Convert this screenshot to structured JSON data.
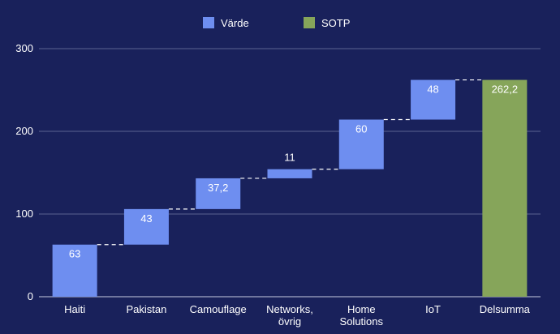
{
  "chart_data": {
    "type": "waterfall",
    "categories": [
      "Haiti",
      "Pakistan",
      "Camouflage",
      "Networks,\növrig",
      "Home\nSolutions",
      "IoT",
      "Delsumma"
    ],
    "values": [
      63,
      43,
      37.2,
      11,
      60,
      48,
      262.2
    ],
    "value_labels": [
      "63",
      "43",
      "37,2",
      "11",
      "60",
      "48",
      "262,2"
    ],
    "is_total": [
      false,
      false,
      false,
      false,
      false,
      false,
      true
    ],
    "legend": [
      {
        "name": "Värde",
        "color": "#6e8ef0"
      },
      {
        "name": "SOTP",
        "color": "#86a55a"
      }
    ],
    "title": "",
    "xlabel": "",
    "ylabel": "",
    "ylim": [
      0,
      300
    ],
    "yticks": [
      0,
      100,
      200,
      300
    ],
    "grid": true,
    "legend_position": "top-center"
  },
  "colors": {
    "background": "#19215b",
    "increase": "#6e8ef0",
    "total": "#86a55a",
    "gridline": "#5a6390",
    "text": "#ffffff"
  }
}
